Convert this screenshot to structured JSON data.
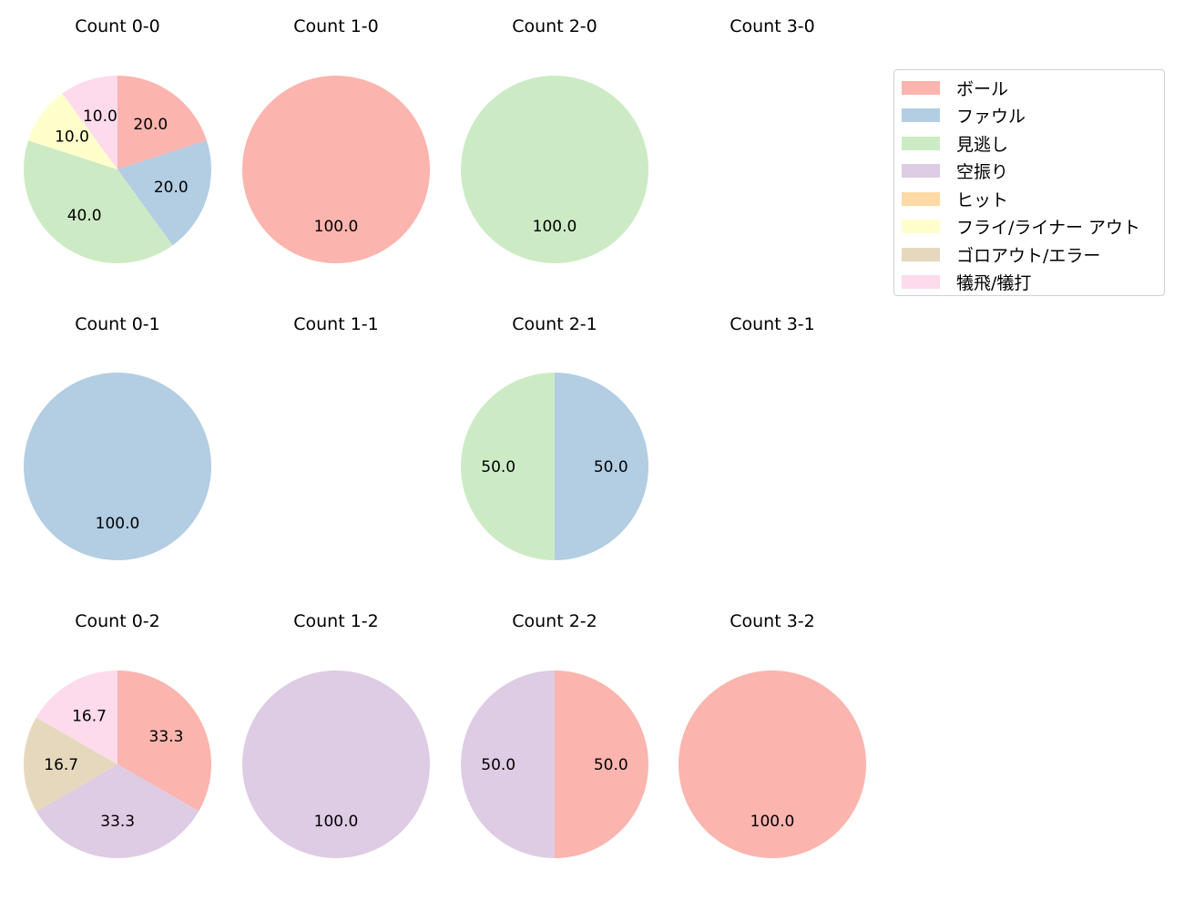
{
  "chart_data": {
    "type": "pie",
    "layout": {
      "rows": 3,
      "cols": 4,
      "legend_position": "upper right"
    },
    "categories": [
      "ボール",
      "ファウル",
      "見逃し",
      "空振り",
      "ヒット",
      "フライ/ライナー アウト",
      "ゴロアウト/エラー",
      "犠飛/犠打"
    ],
    "colors": [
      "#fbb4ae",
      "#b3cde3",
      "#ccebc5",
      "#decbe4",
      "#fed9a6",
      "#ffffcc",
      "#e5d8bd",
      "#fddaec"
    ],
    "subplots": [
      {
        "title": "Count 0-0",
        "row": 0,
        "col": 0,
        "values": [
          20.0,
          20.0,
          40.0,
          0,
          0,
          10.0,
          0,
          10.0
        ]
      },
      {
        "title": "Count 1-0",
        "row": 0,
        "col": 1,
        "values": [
          100.0,
          0,
          0,
          0,
          0,
          0,
          0,
          0
        ]
      },
      {
        "title": "Count 2-0",
        "row": 0,
        "col": 2,
        "values": [
          0,
          0,
          100.0,
          0,
          0,
          0,
          0,
          0
        ]
      },
      {
        "title": "Count 3-0",
        "row": 0,
        "col": 3,
        "values": []
      },
      {
        "title": "Count 0-1",
        "row": 1,
        "col": 0,
        "values": [
          0,
          100.0,
          0,
          0,
          0,
          0,
          0,
          0
        ]
      },
      {
        "title": "Count 1-1",
        "row": 1,
        "col": 1,
        "values": []
      },
      {
        "title": "Count 2-1",
        "row": 1,
        "col": 2,
        "values": [
          0,
          50.0,
          50.0,
          0,
          0,
          0,
          0,
          0
        ]
      },
      {
        "title": "Count 3-1",
        "row": 1,
        "col": 3,
        "values": []
      },
      {
        "title": "Count 0-2",
        "row": 2,
        "col": 0,
        "values": [
          33.3,
          0,
          0,
          33.3,
          0,
          0,
          16.7,
          16.7
        ]
      },
      {
        "title": "Count 1-2",
        "row": 2,
        "col": 1,
        "values": [
          0,
          0,
          0,
          100.0,
          0,
          0,
          0,
          0
        ]
      },
      {
        "title": "Count 2-2",
        "row": 2,
        "col": 2,
        "values": [
          50.0,
          0,
          0,
          50.0,
          0,
          0,
          0,
          0
        ]
      },
      {
        "title": "Count 3-2",
        "row": 2,
        "col": 3,
        "values": [
          100.0,
          0,
          0,
          0,
          0,
          0,
          0,
          0
        ]
      }
    ]
  },
  "legend": {
    "items": [
      {
        "label": "ボール",
        "color": "#fbb4ae"
      },
      {
        "label": "ファウル",
        "color": "#b3cde3"
      },
      {
        "label": "見逃し",
        "color": "#ccebc5"
      },
      {
        "label": "空振り",
        "color": "#decbe4"
      },
      {
        "label": "ヒット",
        "color": "#fed9a6"
      },
      {
        "label": "フライ/ライナー アウト",
        "color": "#ffffcc"
      },
      {
        "label": "ゴロアウト/エラー",
        "color": "#e5d8bd"
      },
      {
        "label": "犠飛/犠打",
        "color": "#fddaec"
      }
    ]
  }
}
